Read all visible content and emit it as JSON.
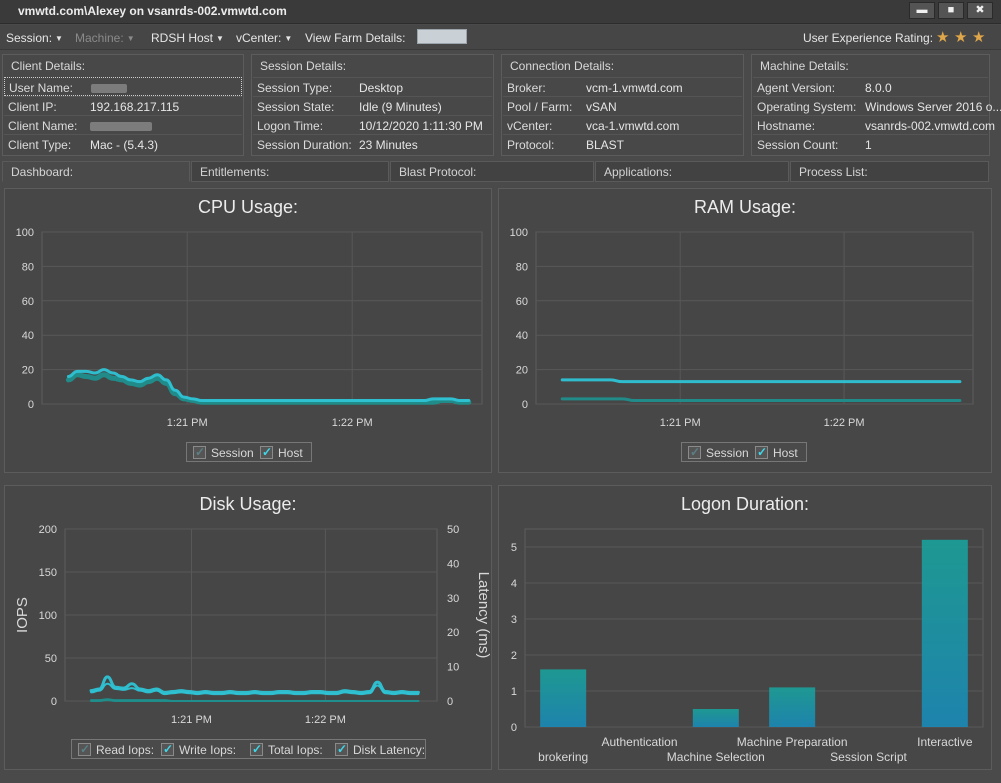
{
  "window": {
    "title": "vmwtd.com\\Alexey on vsanrds-002.vmwtd.com",
    "minimize_glyph": "▬",
    "maximize_glyph": "■",
    "close_glyph": "✖"
  },
  "menu": {
    "session": "Session:",
    "machine": "Machine:",
    "rdsh_host": "RDSH Host",
    "vcenter": "vCenter:",
    "view_farm": "View Farm Details:",
    "ux_rating": "User Experience Rating:",
    "rating_stars": 3,
    "star_color": "#e0a64a"
  },
  "client": {
    "title": "Client Details:",
    "rows": [
      {
        "k": "User Name:",
        "v": ""
      },
      {
        "k": "Client IP:",
        "v": "192.168.217.115"
      },
      {
        "k": "Client Name:",
        "v": ""
      },
      {
        "k": "Client Type:",
        "v": "Mac - (5.4.3)"
      }
    ]
  },
  "session": {
    "title": "Session Details:",
    "rows": [
      {
        "k": "Session Type:",
        "v": "Desktop"
      },
      {
        "k": "Session State:",
        "v": "Idle (9 Minutes)"
      },
      {
        "k": "Logon Time:",
        "v": "10/12/2020 1:11:30 PM"
      },
      {
        "k": "Session Duration:",
        "v": "23 Minutes"
      }
    ]
  },
  "connection": {
    "title": "Connection Details:",
    "rows": [
      {
        "k": "Broker:",
        "v": "vcm-1.vmwtd.com"
      },
      {
        "k": "Pool / Farm:",
        "v": "vSAN"
      },
      {
        "k": "vCenter:",
        "v": "vca-1.vmwtd.com"
      },
      {
        "k": "Protocol:",
        "v": "BLAST"
      }
    ]
  },
  "machine": {
    "title": "Machine Details:",
    "rows": [
      {
        "k": "Agent Version:",
        "v": "8.0.0"
      },
      {
        "k": "Operating System:",
        "v": "Windows Server 2016 o..."
      },
      {
        "k": "Hostname:",
        "v": "vsanrds-002.vmwtd.com"
      },
      {
        "k": "Session Count:",
        "v": "1"
      }
    ]
  },
  "tabs": [
    "Dashboard:",
    "Entitlements:",
    "Blast Protocol:",
    "Applications:",
    "Process List:"
  ],
  "colors": {
    "cyan": "#2ec4d6",
    "teal": "#1f8f8c",
    "bar_top": "#1aa19a",
    "bar_bottom": "#1a8ab8"
  },
  "chart_data": [
    {
      "type": "line",
      "title": "CPU Usage:",
      "ylim": [
        0,
        100
      ],
      "yticks": [
        0,
        20,
        40,
        60,
        80,
        100
      ],
      "xticks": [
        "1:21 PM",
        "1:22 PM"
      ],
      "grid": true,
      "legend": "bottom",
      "series": [
        {
          "name": "Session",
          "values": [
            14,
            17,
            16,
            15,
            17,
            15,
            14,
            12,
            11,
            13,
            15,
            12,
            6,
            3,
            2,
            1,
            1,
            1,
            1,
            1,
            1,
            1,
            1,
            1,
            1,
            1,
            1,
            1,
            1,
            1,
            1,
            1,
            1,
            1,
            1,
            1,
            1,
            1,
            1,
            1,
            1,
            1,
            2,
            2,
            1,
            1
          ]
        },
        {
          "name": "Host",
          "values": [
            16,
            19,
            19,
            18,
            20,
            18,
            16,
            14,
            13,
            15,
            17,
            14,
            8,
            4,
            3,
            2,
            2,
            2,
            2,
            2,
            2,
            2,
            2,
            2,
            2,
            2,
            2,
            2,
            2,
            2,
            2,
            2,
            2,
            2,
            2,
            2,
            2,
            2,
            2,
            2,
            2,
            3,
            3,
            3,
            2,
            2
          ]
        }
      ]
    },
    {
      "type": "line",
      "title": "RAM Usage:",
      "ylim": [
        0,
        100
      ],
      "yticks": [
        0,
        20,
        40,
        60,
        80,
        100
      ],
      "xticks": [
        "1:21 PM",
        "1:22 PM"
      ],
      "grid": true,
      "legend": "bottom",
      "series": [
        {
          "name": "Session",
          "values": [
            3,
            3,
            3,
            3,
            3,
            3,
            2,
            2,
            2,
            2,
            2,
            2,
            2,
            2,
            2,
            2,
            2,
            2,
            2,
            2,
            2,
            2,
            2,
            2,
            2,
            2,
            2,
            2,
            2,
            2,
            2,
            2,
            2,
            2
          ]
        },
        {
          "name": "Host",
          "values": [
            14,
            14,
            14,
            14,
            14,
            13,
            13,
            13,
            13,
            13,
            13,
            13,
            13,
            13,
            13,
            13,
            13,
            13,
            13,
            13,
            13,
            13,
            13,
            13,
            13,
            13,
            13,
            13,
            13,
            13,
            13,
            13,
            13,
            13
          ]
        }
      ]
    },
    {
      "type": "line",
      "title": "Disk Usage:",
      "ylabel": "IOPS",
      "y2label": "Latency (ms)",
      "ylim": [
        0,
        200
      ],
      "yticks": [
        0,
        50,
        100,
        150,
        200
      ],
      "y2lim": [
        0,
        50
      ],
      "y2ticks": [
        0,
        10,
        20,
        30,
        40,
        50
      ],
      "xticks": [
        "1:21 PM",
        "1:22 PM"
      ],
      "grid": true,
      "legend": "bottom",
      "series": [
        {
          "name": "Read Iops:",
          "values": [
            0,
            0,
            1,
            0,
            0,
            0,
            0,
            0,
            0,
            0,
            0,
            0,
            0,
            0,
            0,
            0,
            0,
            0,
            0,
            0,
            0,
            0,
            0,
            0,
            0,
            0,
            0,
            0,
            0,
            0,
            0,
            0,
            0,
            0,
            0,
            0,
            0,
            0,
            0,
            0,
            0
          ]
        },
        {
          "name": "Write Iops:",
          "values": [
            10,
            12,
            20,
            14,
            13,
            15,
            12,
            10,
            12,
            8,
            9,
            10,
            9,
            8,
            9,
            8,
            8,
            9,
            8,
            8,
            9,
            8,
            8,
            9,
            9,
            8,
            8,
            9,
            9,
            8,
            8,
            10,
            9,
            8,
            9,
            18,
            9,
            8,
            9,
            8,
            8
          ]
        },
        {
          "name": "Total Iops:",
          "values": [
            12,
            14,
            28,
            16,
            15,
            20,
            14,
            12,
            14,
            10,
            11,
            12,
            11,
            10,
            11,
            10,
            10,
            11,
            10,
            10,
            11,
            10,
            10,
            11,
            11,
            10,
            10,
            11,
            11,
            10,
            10,
            12,
            11,
            10,
            11,
            22,
            11,
            10,
            11,
            10,
            10
          ]
        },
        {
          "name": "Disk Latency:",
          "values": [
            1,
            1,
            2,
            1,
            1,
            1,
            1,
            1,
            1,
            1,
            0,
            0,
            0,
            0,
            0,
            0,
            0,
            0,
            0,
            0,
            0,
            0,
            0,
            0,
            0,
            0,
            0,
            0,
            0,
            0,
            0,
            0,
            0,
            0,
            0,
            0,
            0,
            0,
            0,
            0,
            0
          ]
        }
      ]
    },
    {
      "type": "bar",
      "title": "Logon Duration:",
      "ylim": [
        0,
        5.5
      ],
      "yticks": [
        0,
        1,
        2,
        3,
        4,
        5
      ],
      "grid": true,
      "categories": [
        "brokering",
        "Authentication",
        "Machine Selection",
        "Machine Preparation",
        "Session Script",
        "Interactive"
      ],
      "values": [
        1.6,
        0,
        0.5,
        1.1,
        0,
        5.2
      ]
    }
  ]
}
